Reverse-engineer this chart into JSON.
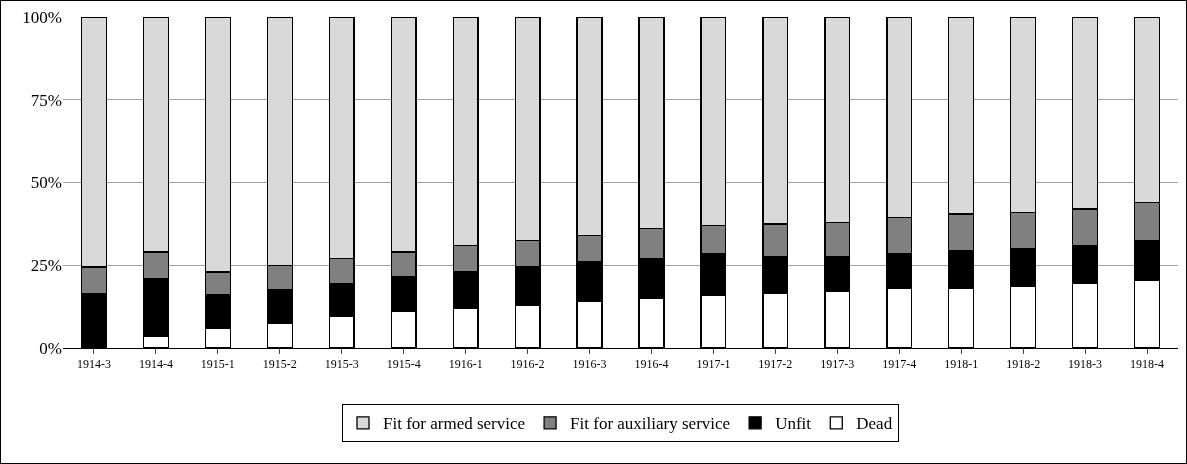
{
  "chart_data": {
    "type": "bar",
    "stacked": true,
    "categories": [
      "1914-3",
      "1914-4",
      "1915-1",
      "1915-2",
      "1915-3",
      "1915-4",
      "1916-1",
      "1916-2",
      "1916-3",
      "1916-4",
      "1917-1",
      "1917-2",
      "1917-3",
      "1917-4",
      "1918-1",
      "1918-2",
      "1918-3",
      "1918-4"
    ],
    "series": [
      {
        "name": "Dead",
        "color": "#ffffff",
        "values": [
          0,
          3.5,
          6,
          7.5,
          9.5,
          11,
          12,
          13,
          14,
          15,
          16,
          16.5,
          17,
          18,
          18,
          18.5,
          19.5,
          20.5
        ]
      },
      {
        "name": "Unfit",
        "color": "#000000",
        "values": [
          16.5,
          17.5,
          10,
          10,
          10,
          10.5,
          11,
          11.5,
          12,
          12,
          12.5,
          11,
          10.5,
          10.5,
          11.5,
          11.5,
          11.5,
          12
        ]
      },
      {
        "name": "Fit for auxiliary service",
        "color": "#808080",
        "values": [
          8,
          8,
          7,
          7.5,
          7.5,
          7.5,
          8,
          8,
          8,
          9,
          8.5,
          10,
          10.5,
          11,
          11,
          11,
          11,
          11.5
        ]
      },
      {
        "name": "Fit for armed service",
        "color": "#d9d9d9",
        "values": [
          75.5,
          71,
          77,
          75,
          73,
          71,
          69,
          67.5,
          66,
          64,
          63,
          62.5,
          62,
          60.5,
          59.5,
          59,
          58,
          56
        ]
      }
    ],
    "ylim": [
      0,
      100
    ],
    "yticks": [
      {
        "value": 0,
        "label": "0%"
      },
      {
        "value": 25,
        "label": "25%"
      },
      {
        "value": 50,
        "label": "50%"
      },
      {
        "value": 75,
        "label": "75%"
      },
      {
        "value": 100,
        "label": "100%"
      }
    ],
    "grid": "y",
    "legend": "bottom"
  }
}
